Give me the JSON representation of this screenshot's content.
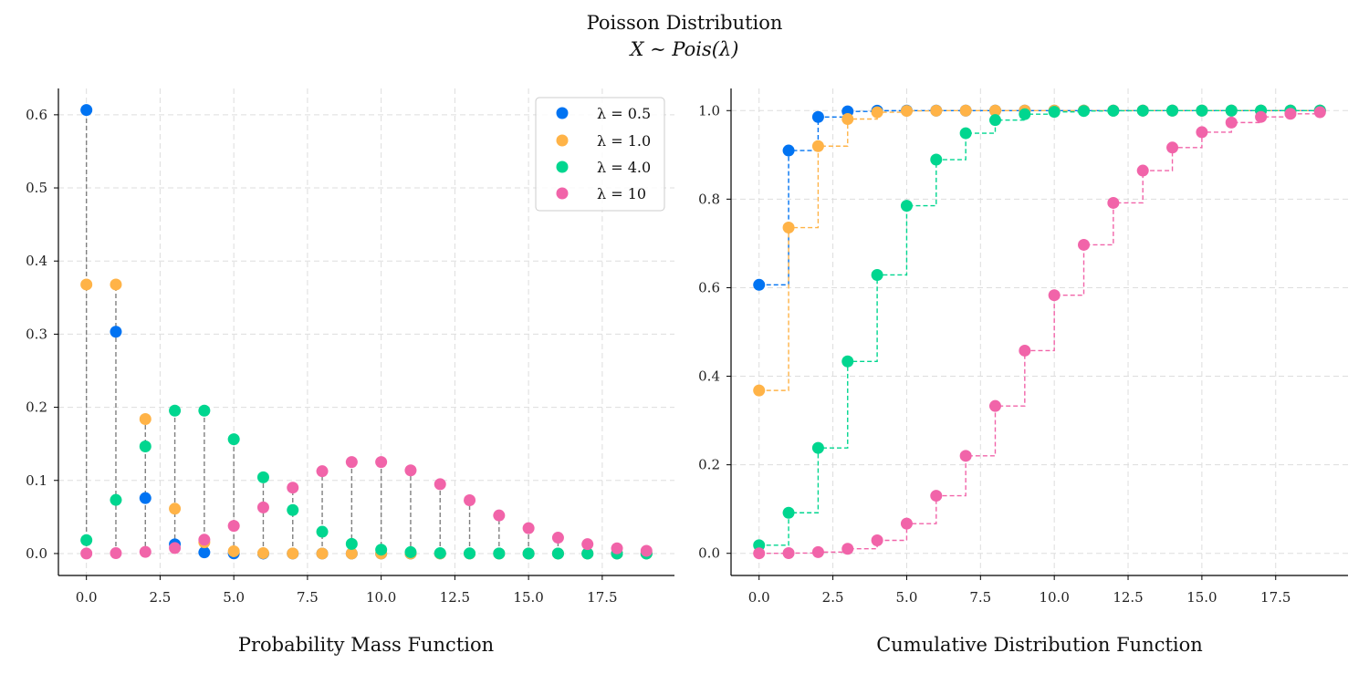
{
  "figure": {
    "title": "Poisson Distribution",
    "subtitle": "X ∼ Pois(λ)"
  },
  "colors": {
    "series": [
      "#0073f2",
      "#ffb347",
      "#00d68f",
      "#f164a9"
    ],
    "stem": "#808080",
    "grid": "#dddddd",
    "axis": "#000000"
  },
  "chart_data": [
    {
      "type": "scatter",
      "panel": "pmf",
      "xlabel": "Probability Mass Function",
      "ylabel": "",
      "x": [
        0,
        1,
        2,
        3,
        4,
        5,
        6,
        7,
        8,
        9,
        10,
        11,
        12,
        13,
        14,
        15,
        16,
        17,
        18,
        19
      ],
      "xlim": [
        -0.95,
        19.95
      ],
      "ylim": [
        -0.03,
        0.636
      ],
      "xticks": [
        0,
        2.5,
        5,
        7.5,
        10,
        12.5,
        15,
        17.5
      ],
      "xtick_labels": [
        "0.0",
        "2.5",
        "5.0",
        "7.5",
        "10.0",
        "12.5",
        "15.0",
        "17.5"
      ],
      "yticks": [
        0,
        0.1,
        0.2,
        0.3,
        0.4,
        0.5,
        0.6
      ],
      "ytick_labels": [
        "0.0",
        "0.1",
        "0.2",
        "0.3",
        "0.4",
        "0.5",
        "0.6"
      ],
      "grid": true,
      "stems": true,
      "legend": {
        "placement": "top-right",
        "labels": [
          "λ = 0.5",
          "λ = 1.0",
          "λ = 4.0",
          "λ = 10"
        ]
      },
      "series": [
        {
          "name": "λ = 0.5",
          "values": [
            0.6065,
            0.3033,
            0.0758,
            0.0126,
            0.0016,
            0.0002,
            0,
            0,
            0,
            0,
            0,
            0,
            0,
            0,
            0,
            0,
            0,
            0,
            0,
            0
          ]
        },
        {
          "name": "λ = 1.0",
          "values": [
            0.3679,
            0.3679,
            0.1839,
            0.0613,
            0.0153,
            0.0031,
            0.0005,
            0.0001,
            0,
            0,
            0,
            0,
            0,
            0,
            0,
            0,
            0,
            0,
            0,
            0
          ]
        },
        {
          "name": "λ = 4.0",
          "values": [
            0.0183,
            0.0733,
            0.1465,
            0.1954,
            0.1954,
            0.1563,
            0.1042,
            0.0595,
            0.0298,
            0.0132,
            0.0053,
            0.0019,
            0.0006,
            0.0002,
            0.0001,
            0,
            0,
            0,
            0,
            0
          ]
        },
        {
          "name": "λ = 10",
          "values": [
            5e-05,
            0.0005,
            0.0023,
            0.0076,
            0.0189,
            0.0378,
            0.0631,
            0.0901,
            0.1126,
            0.1251,
            0.1251,
            0.1137,
            0.0948,
            0.0729,
            0.0521,
            0.0347,
            0.0217,
            0.0128,
            0.0071,
            0.0037
          ]
        }
      ]
    },
    {
      "type": "line",
      "panel": "cdf",
      "xlabel": "Cumulative Distribution Function",
      "ylabel": "",
      "x": [
        0,
        1,
        2,
        3,
        4,
        5,
        6,
        7,
        8,
        9,
        10,
        11,
        12,
        13,
        14,
        15,
        16,
        17,
        18,
        19
      ],
      "xlim": [
        -0.95,
        19.95
      ],
      "ylim": [
        -0.05,
        1.05
      ],
      "xticks": [
        0,
        2.5,
        5,
        7.5,
        10,
        12.5,
        15,
        17.5
      ],
      "xtick_labels": [
        "0.0",
        "2.5",
        "5.0",
        "7.5",
        "10.0",
        "12.5",
        "15.0",
        "17.5"
      ],
      "yticks": [
        0,
        0.2,
        0.4,
        0.6,
        0.8,
        1.0
      ],
      "ytick_labels": [
        "0.0",
        "0.2",
        "0.4",
        "0.6",
        "0.8",
        "1.0"
      ],
      "grid": true,
      "step": "post",
      "series": [
        {
          "name": "λ = 0.5",
          "values": [
            0.6065,
            0.9098,
            0.9856,
            0.9982,
            0.9998,
            1,
            1,
            1,
            1,
            1,
            1,
            1,
            1,
            1,
            1,
            1,
            1,
            1,
            1,
            1
          ]
        },
        {
          "name": "λ = 1.0",
          "values": [
            0.3679,
            0.7358,
            0.9197,
            0.981,
            0.9963,
            0.9994,
            0.9999,
            1,
            1,
            1,
            1,
            1,
            1,
            1,
            1,
            1,
            1,
            1,
            1,
            1
          ]
        },
        {
          "name": "λ = 4.0",
          "values": [
            0.0183,
            0.0916,
            0.2381,
            0.4335,
            0.6288,
            0.7851,
            0.8893,
            0.9489,
            0.9786,
            0.9919,
            0.9972,
            0.9991,
            0.9997,
            0.9999,
            1,
            1,
            1,
            1,
            1,
            1
          ]
        },
        {
          "name": "λ = 10",
          "values": [
            5e-05,
            0.0005,
            0.0028,
            0.0103,
            0.0293,
            0.0671,
            0.1301,
            0.2202,
            0.3328,
            0.4579,
            0.583,
            0.6968,
            0.7916,
            0.8645,
            0.9165,
            0.9513,
            0.973,
            0.9857,
            0.9928,
            0.9965
          ]
        }
      ]
    }
  ]
}
